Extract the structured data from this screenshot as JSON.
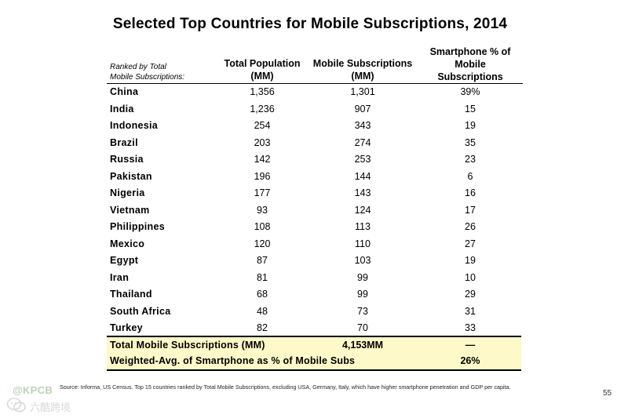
{
  "title": "Selected Top Countries for Mobile Subscriptions, 2014",
  "header": {
    "rank_line1": "Ranked by Total",
    "rank_line2": "Mobile Subscriptions:",
    "pop_line1": "Total Population",
    "pop_line2": "(MM)",
    "subs_line1": "Mobile Subscriptions",
    "subs_line2": "(MM)",
    "smart_line1": "Smartphone % of",
    "smart_line2": "Mobile",
    "smart_line3": "Subscriptions"
  },
  "rows": [
    {
      "country": "China",
      "pop": "1,356",
      "subs": "1,301",
      "smart": "39%"
    },
    {
      "country": "India",
      "pop": "1,236",
      "subs": "907",
      "smart": "15"
    },
    {
      "country": "Indonesia",
      "pop": "254",
      "subs": "343",
      "smart": "19"
    },
    {
      "country": "Brazil",
      "pop": "203",
      "subs": "274",
      "smart": "35"
    },
    {
      "country": "Russia",
      "pop": "142",
      "subs": "253",
      "smart": "23"
    },
    {
      "country": "Pakistan",
      "pop": "196",
      "subs": "144",
      "smart": "6"
    },
    {
      "country": "Nigeria",
      "pop": "177",
      "subs": "143",
      "smart": "16"
    },
    {
      "country": "Vietnam",
      "pop": "93",
      "subs": "124",
      "smart": "17"
    },
    {
      "country": "Philippines",
      "pop": "108",
      "subs": "113",
      "smart": "26"
    },
    {
      "country": "Mexico",
      "pop": "120",
      "subs": "110",
      "smart": "27"
    },
    {
      "country": "Egypt",
      "pop": "87",
      "subs": "103",
      "smart": "19"
    },
    {
      "country": "Iran",
      "pop": "81",
      "subs": "99",
      "smart": "10"
    },
    {
      "country": "Thailand",
      "pop": "68",
      "subs": "99",
      "smart": "29"
    },
    {
      "country": "South Africa",
      "pop": "48",
      "subs": "73",
      "smart": "31"
    },
    {
      "country": "Turkey",
      "pop": "82",
      "subs": "70",
      "smart": "33"
    }
  ],
  "totals": {
    "total_label": "Total Mobile Subscriptions (MM)",
    "total_subs": "4,153MM",
    "total_smart": "—",
    "avg_label": "Weighted-Avg. of Smartphone as % of Mobile Subs",
    "avg_smart": "26%"
  },
  "source": "Source: Informa, US Census. Top 15 countries ranked by Total Mobile Subscriptions, excluding USA, Germany, Italy, which have higher smartphone penetration and GDP per capita.",
  "page_number": "55",
  "watermark": {
    "brand": "@KPCB",
    "sub": "六酷跨境"
  },
  "colors": {
    "totals_bg": "#fdf9c8",
    "watermark_green": "#b9d3b4"
  }
}
